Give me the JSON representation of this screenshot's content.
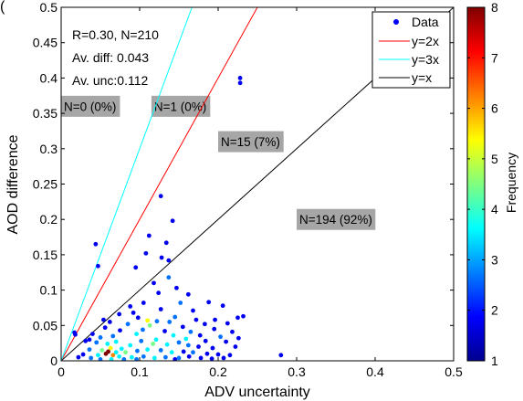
{
  "panel_label": "(",
  "chart_data": {
    "type": "scatter",
    "xlabel": "ADV uncertainty",
    "ylabel": "AOD difference",
    "xlim": [
      0,
      0.5
    ],
    "ylim": [
      0,
      0.5
    ],
    "xticks": [
      0,
      0.1,
      0.2,
      0.3,
      0.4,
      0.5
    ],
    "xtick_labels": [
      "0",
      "0.1",
      "0.2",
      "0.3",
      "0.4",
      "0.5"
    ],
    "yticks": [
      0,
      0.05,
      0.1,
      0.15,
      0.2,
      0.25,
      0.3,
      0.35,
      0.4,
      0.45,
      0.5
    ],
    "ytick_labels": [
      "0",
      "0.05",
      "0.1",
      "0.15",
      "0.2",
      "0.25",
      "0.3",
      "0.35",
      "0.4",
      "0.45",
      "0.5"
    ],
    "grid": false,
    "legend_position": "top-right",
    "legend": [
      {
        "label": "Data",
        "kind": "marker",
        "color": "#0000ff"
      },
      {
        "label": "y=2x",
        "kind": "line",
        "color": "#ff0000"
      },
      {
        "label": "y=3x",
        "kind": "line",
        "color": "#00ffff"
      },
      {
        "label": "y=x",
        "kind": "line",
        "color": "#000000"
      }
    ],
    "lines": [
      {
        "label": "y=x",
        "slope": 1,
        "color": "#000000"
      },
      {
        "label": "y=2x",
        "slope": 2,
        "color": "#ff0000"
      },
      {
        "label": "y=3x",
        "slope": 3,
        "color": "#00ffff"
      }
    ],
    "stats": [
      "R=0.30, N=210",
      "Av. diff: 0.043",
      "Av. unc:0.112"
    ],
    "region_counts": [
      {
        "text": "N=0 (0%)",
        "at": [
          0.0,
          0.36
        ]
      },
      {
        "text": "N=1 (0%)",
        "at": [
          0.115,
          0.36
        ]
      },
      {
        "text": "N=15 (7%)",
        "at": [
          0.2,
          0.31
        ]
      },
      {
        "text": "N=194 (92%)",
        "at": [
          0.3,
          0.2
        ]
      }
    ],
    "colorbar": {
      "label": "Frequency",
      "min": 1,
      "max": 8,
      "ticks": [
        1,
        2,
        3,
        4,
        5,
        6,
        7,
        8
      ],
      "colormap": "jet"
    },
    "points": [
      [
        0.228,
        0.4,
        1
      ],
      [
        0.228,
        0.393,
        1
      ],
      [
        0.127,
        0.233,
        1
      ],
      [
        0.112,
        0.177,
        1
      ],
      [
        0.142,
        0.198,
        1
      ],
      [
        0.044,
        0.165,
        1
      ],
      [
        0.134,
        0.167,
        1
      ],
      [
        0.108,
        0.152,
        1
      ],
      [
        0.128,
        0.146,
        1
      ],
      [
        0.137,
        0.142,
        1
      ],
      [
        0.047,
        0.134,
        1
      ],
      [
        0.095,
        0.132,
        1
      ],
      [
        0.137,
        0.118,
        2
      ],
      [
        0.124,
        0.096,
        1
      ],
      [
        0.162,
        0.094,
        1
      ],
      [
        0.105,
        0.082,
        1
      ],
      [
        0.152,
        0.082,
        2
      ],
      [
        0.088,
        0.077,
        1
      ],
      [
        0.188,
        0.083,
        1
      ],
      [
        0.127,
        0.073,
        1
      ],
      [
        0.206,
        0.078,
        1
      ],
      [
        0.168,
        0.071,
        1
      ],
      [
        0.232,
        0.063,
        1
      ],
      [
        0.074,
        0.066,
        1
      ],
      [
        0.098,
        0.061,
        1
      ],
      [
        0.145,
        0.062,
        2
      ],
      [
        0.122,
        0.056,
        2
      ],
      [
        0.183,
        0.052,
        1
      ],
      [
        0.212,
        0.053,
        1
      ],
      [
        0.225,
        0.061,
        1
      ],
      [
        0.018,
        0.037,
        1
      ],
      [
        0.017,
        0.04,
        1
      ],
      [
        0.062,
        0.055,
        1
      ],
      [
        0.085,
        0.052,
        2
      ],
      [
        0.11,
        0.057,
        5
      ],
      [
        0.113,
        0.05,
        4
      ],
      [
        0.155,
        0.048,
        1
      ],
      [
        0.165,
        0.041,
        2
      ],
      [
        0.195,
        0.045,
        1
      ],
      [
        0.218,
        0.041,
        1
      ],
      [
        0.056,
        0.047,
        1
      ],
      [
        0.04,
        0.038,
        1
      ],
      [
        0.05,
        0.033,
        2
      ],
      [
        0.066,
        0.035,
        2
      ],
      [
        0.075,
        0.043,
        1
      ],
      [
        0.096,
        0.038,
        3
      ],
      [
        0.104,
        0.044,
        2
      ],
      [
        0.132,
        0.042,
        1
      ],
      [
        0.143,
        0.036,
        3
      ],
      [
        0.177,
        0.036,
        1
      ],
      [
        0.203,
        0.034,
        2
      ],
      [
        0.226,
        0.032,
        1
      ],
      [
        0.184,
        0.028,
        1
      ],
      [
        0.21,
        0.027,
        1
      ],
      [
        0.121,
        0.03,
        3
      ],
      [
        0.031,
        0.028,
        1
      ],
      [
        0.045,
        0.026,
        2
      ],
      [
        0.059,
        0.024,
        3
      ],
      [
        0.07,
        0.027,
        3
      ],
      [
        0.088,
        0.022,
        3
      ],
      [
        0.102,
        0.028,
        2
      ],
      [
        0.117,
        0.024,
        4
      ],
      [
        0.135,
        0.023,
        3
      ],
      [
        0.15,
        0.026,
        2
      ],
      [
        0.162,
        0.022,
        2
      ],
      [
        0.175,
        0.02,
        1
      ],
      [
        0.193,
        0.018,
        1
      ],
      [
        0.222,
        0.02,
        1
      ],
      [
        0.036,
        0.016,
        2
      ],
      [
        0.052,
        0.015,
        4
      ],
      [
        0.063,
        0.018,
        5
      ],
      [
        0.077,
        0.017,
        3
      ],
      [
        0.082,
        0.012,
        4
      ],
      [
        0.097,
        0.014,
        2
      ],
      [
        0.11,
        0.016,
        3
      ],
      [
        0.127,
        0.015,
        2
      ],
      [
        0.141,
        0.012,
        3
      ],
      [
        0.156,
        0.013,
        1
      ],
      [
        0.168,
        0.012,
        2
      ],
      [
        0.186,
        0.01,
        1
      ],
      [
        0.2,
        0.009,
        1
      ],
      [
        0.215,
        0.008,
        1
      ],
      [
        0.057,
        0.01,
        8
      ],
      [
        0.06,
        0.013,
        8
      ],
      [
        0.066,
        0.008,
        6
      ],
      [
        0.07,
        0.012,
        3
      ],
      [
        0.074,
        0.006,
        3
      ],
      [
        0.047,
        0.008,
        3
      ],
      [
        0.028,
        0.009,
        1
      ],
      [
        0.022,
        0.005,
        1
      ],
      [
        0.038,
        0.004,
        2
      ],
      [
        0.09,
        0.005,
        3
      ],
      [
        0.105,
        0.006,
        2
      ],
      [
        0.119,
        0.004,
        3
      ],
      [
        0.133,
        0.005,
        2
      ],
      [
        0.15,
        0.004,
        2
      ],
      [
        0.163,
        0.006,
        1
      ],
      [
        0.178,
        0.004,
        1
      ],
      [
        0.192,
        0.003,
        1
      ],
      [
        0.207,
        0.004,
        1
      ],
      [
        0.05,
        0.002,
        2
      ],
      [
        0.064,
        0.002,
        3
      ],
      [
        0.08,
        0.002,
        2
      ],
      [
        0.096,
        0.002,
        2
      ],
      [
        0.145,
        0.002,
        1
      ],
      [
        0.28,
        0.008,
        1
      ],
      [
        0.036,
        0.03,
        1
      ],
      [
        0.092,
        0.068,
        1
      ],
      [
        0.138,
        0.055,
        2
      ],
      [
        0.172,
        0.058,
        1
      ],
      [
        0.147,
        0.103,
        1
      ],
      [
        0.118,
        0.11,
        1
      ],
      [
        0.196,
        0.058,
        1
      ],
      [
        0.159,
        0.031,
        3
      ],
      [
        0.054,
        0.058,
        1
      ]
    ]
  }
}
